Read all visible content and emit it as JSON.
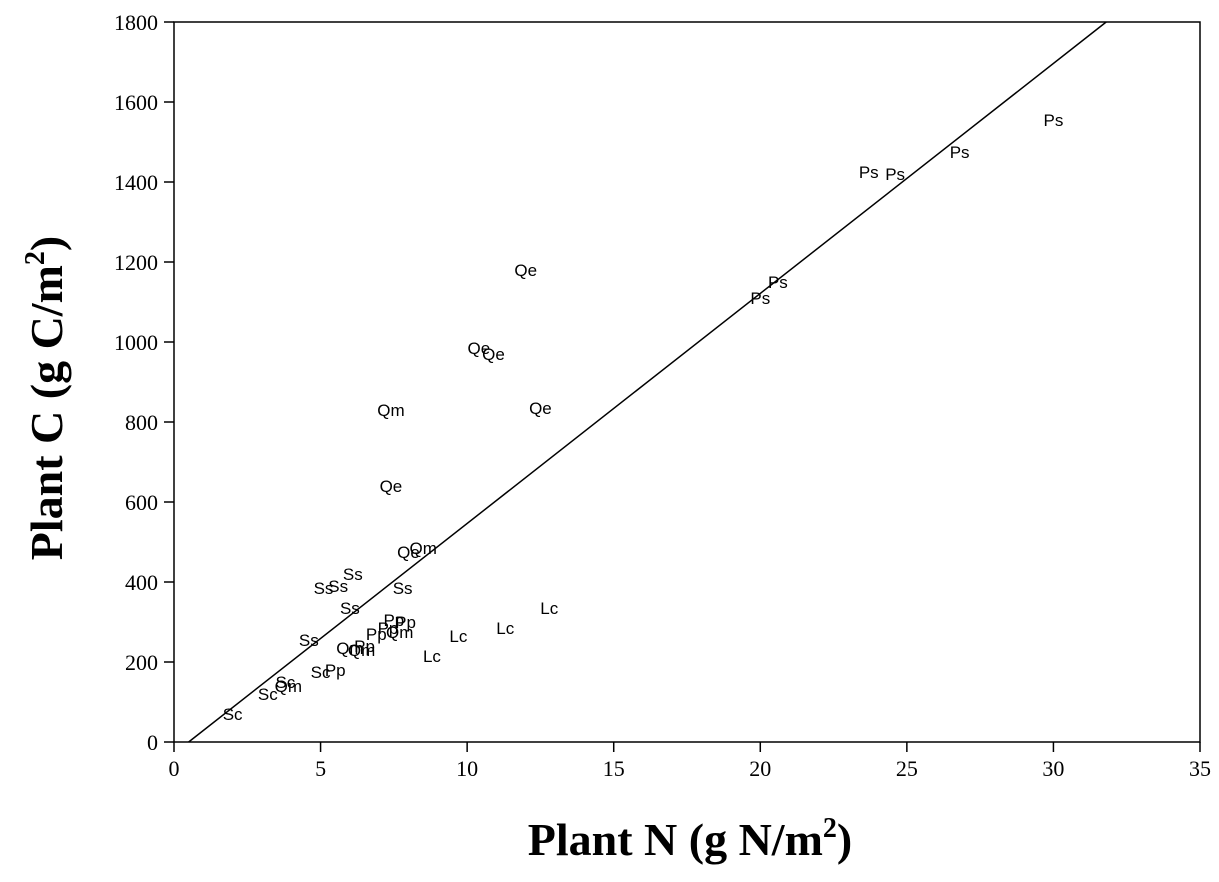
{
  "chart_data": {
    "type": "scatter",
    "title": "",
    "xlabel": {
      "main": "Plant N (g N/m",
      "sup": "2",
      "end": ")"
    },
    "ylabel": {
      "main": "Plant C (g C/m",
      "sup": "2",
      "end": ")"
    },
    "xlim": [
      0,
      35
    ],
    "ylim": [
      0,
      1800
    ],
    "xticks": [
      0,
      5,
      10,
      15,
      20,
      25,
      30,
      35
    ],
    "yticks": [
      0,
      200,
      400,
      600,
      800,
      1000,
      1200,
      1400,
      1600,
      1800
    ],
    "grid": false,
    "legend": "none",
    "fit_line": {
      "x": [
        0.5,
        31.8
      ],
      "y": [
        0,
        1800
      ]
    },
    "points": [
      {
        "label": "Ps",
        "x": 30.0,
        "y": 1555
      },
      {
        "label": "Ps",
        "x": 26.8,
        "y": 1475
      },
      {
        "label": "Ps",
        "x": 23.7,
        "y": 1425
      },
      {
        "label": "Ps",
        "x": 24.6,
        "y": 1420
      },
      {
        "label": "Ps",
        "x": 20.6,
        "y": 1150
      },
      {
        "label": "Ps",
        "x": 20.0,
        "y": 1110
      },
      {
        "label": "Qe",
        "x": 12.0,
        "y": 1180
      },
      {
        "label": "Qe",
        "x": 10.4,
        "y": 985
      },
      {
        "label": "Qe",
        "x": 10.9,
        "y": 970
      },
      {
        "label": "Qe",
        "x": 12.5,
        "y": 835
      },
      {
        "label": "Qe",
        "x": 7.4,
        "y": 640
      },
      {
        "label": "Qe",
        "x": 8.0,
        "y": 475
      },
      {
        "label": "Qm",
        "x": 7.4,
        "y": 830
      },
      {
        "label": "Qm",
        "x": 8.5,
        "y": 485
      },
      {
        "label": "Qm",
        "x": 7.7,
        "y": 275
      },
      {
        "label": "Qm",
        "x": 6.0,
        "y": 235
      },
      {
        "label": "Qm",
        "x": 6.4,
        "y": 230
      },
      {
        "label": "Qm",
        "x": 3.9,
        "y": 140
      },
      {
        "label": "Ss",
        "x": 6.1,
        "y": 420
      },
      {
        "label": "Ss",
        "x": 5.1,
        "y": 385
      },
      {
        "label": "Ss",
        "x": 5.6,
        "y": 390
      },
      {
        "label": "Ss",
        "x": 7.8,
        "y": 385
      },
      {
        "label": "Ss",
        "x": 6.0,
        "y": 335
      },
      {
        "label": "Ss",
        "x": 4.6,
        "y": 255
      },
      {
        "label": "Pp",
        "x": 7.5,
        "y": 305
      },
      {
        "label": "Pp",
        "x": 7.9,
        "y": 300
      },
      {
        "label": "Pp",
        "x": 7.3,
        "y": 285
      },
      {
        "label": "Pp",
        "x": 6.9,
        "y": 270
      },
      {
        "label": "Pp",
        "x": 6.5,
        "y": 240
      },
      {
        "label": "Pp",
        "x": 5.5,
        "y": 180
      },
      {
        "label": "Lc",
        "x": 12.8,
        "y": 335
      },
      {
        "label": "Lc",
        "x": 11.3,
        "y": 285
      },
      {
        "label": "Lc",
        "x": 9.7,
        "y": 265
      },
      {
        "label": "Lc",
        "x": 8.8,
        "y": 215
      },
      {
        "label": "Sc",
        "x": 5.0,
        "y": 175
      },
      {
        "label": "Sc",
        "x": 3.8,
        "y": 150
      },
      {
        "label": "Sc",
        "x": 3.2,
        "y": 120
      },
      {
        "label": "Sc",
        "x": 2.0,
        "y": 70
      }
    ]
  }
}
